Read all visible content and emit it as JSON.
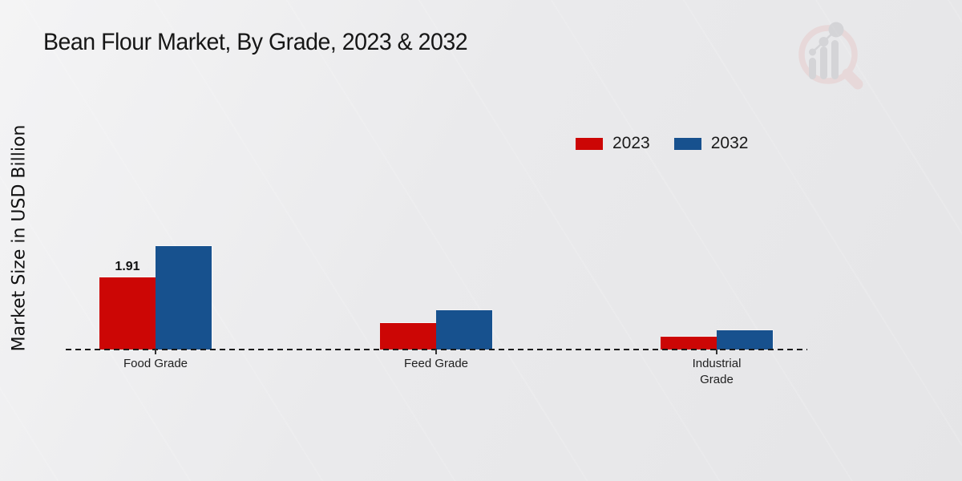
{
  "chart_data": {
    "type": "bar",
    "title": "Bean Flour Market, By Grade, 2023 & 2032",
    "ylabel": "Market Size in USD Billion",
    "xlabel": "",
    "categories": [
      "Food Grade",
      "Feed Grade",
      "Industrial Grade"
    ],
    "series": [
      {
        "name": "2023",
        "color": "#cc0605",
        "values": [
          1.91,
          0.7,
          0.35
        ]
      },
      {
        "name": "2032",
        "color": "#17518e",
        "values": [
          2.74,
          1.03,
          0.5
        ]
      }
    ],
    "data_labels": [
      {
        "series_index": 0,
        "category_index": 0,
        "text": "1.91"
      }
    ],
    "ylim": [
      0,
      3
    ],
    "grid": false,
    "baseline_style": "dashed",
    "legend_position": "top-right",
    "y_axis_ticks_visible": false
  },
  "branding": {
    "logo_name": "magnifier-bar-chart-watermark",
    "footer_band_color": "#c10505",
    "logo_ring_color": "#e7cccc",
    "logo_bar_color": "#c5c5c9"
  }
}
